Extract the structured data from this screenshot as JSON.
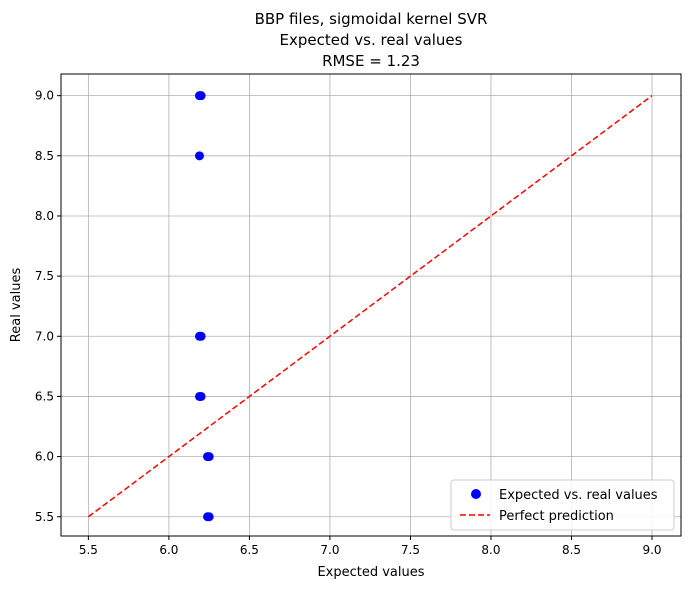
{
  "chart_data": {
    "type": "scatter",
    "title_lines": [
      "BBP files, sigmoidal kernel SVR",
      "Expected vs. real values",
      "RMSE = 1.23"
    ],
    "xlabel": "Expected values",
    "ylabel": "Real values",
    "xlim": [
      5.33,
      9.18
    ],
    "ylim": [
      5.34,
      9.18
    ],
    "xticks": [
      5.5,
      6.0,
      6.5,
      7.0,
      7.5,
      8.0,
      8.5,
      9.0
    ],
    "yticks": [
      5.5,
      6.0,
      6.5,
      7.0,
      7.5,
      8.0,
      8.5,
      9.0
    ],
    "xtick_labels": [
      "5.5",
      "6.0",
      "6.5",
      "7.0",
      "7.5",
      "8.0",
      "8.5",
      "9.0"
    ],
    "ytick_labels": [
      "5.5",
      "6.0",
      "6.5",
      "7.0",
      "7.5",
      "8.0",
      "8.5",
      "9.0"
    ],
    "grid": true,
    "legend_position": "bottom-right",
    "series": [
      {
        "name": "Expected vs. real values",
        "kind": "scatter",
        "color": "#0000ff",
        "points": [
          {
            "x": 6.19,
            "y": 9.0
          },
          {
            "x": 6.2,
            "y": 9.0
          },
          {
            "x": 6.19,
            "y": 8.5
          },
          {
            "x": 6.19,
            "y": 7.0
          },
          {
            "x": 6.2,
            "y": 7.0
          },
          {
            "x": 6.19,
            "y": 6.5
          },
          {
            "x": 6.2,
            "y": 6.5
          },
          {
            "x": 6.24,
            "y": 6.0
          },
          {
            "x": 6.25,
            "y": 6.0
          },
          {
            "x": 6.24,
            "y": 5.5
          },
          {
            "x": 6.25,
            "y": 5.5
          }
        ]
      },
      {
        "name": "Perfect prediction",
        "kind": "line",
        "color": "#ff0000",
        "dashed": true,
        "points": [
          {
            "x": 5.5,
            "y": 5.5
          },
          {
            "x": 9.0,
            "y": 9.0
          }
        ]
      }
    ]
  }
}
